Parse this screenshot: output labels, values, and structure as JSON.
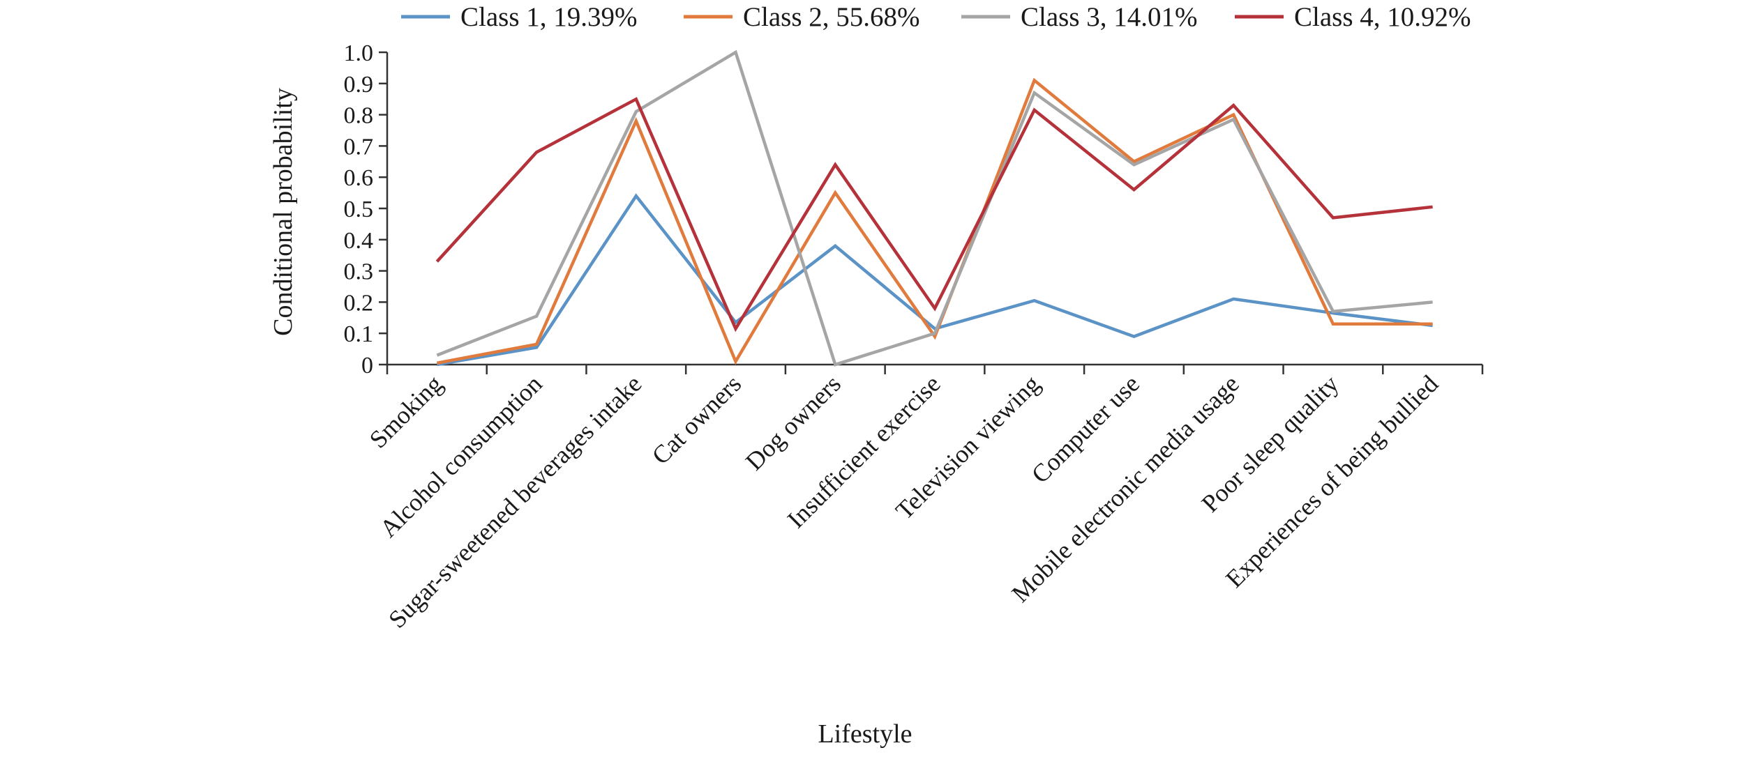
{
  "chart_data": {
    "type": "line",
    "title": "",
    "xlabel": "Lifestyle",
    "ylabel": "Conditional probability",
    "ylim": [
      0,
      1.0
    ],
    "yticks": [
      "0",
      "0.1",
      "0.2",
      "0.3",
      "0.4",
      "0.5",
      "0.6",
      "0.7",
      "0.8",
      "0.9",
      "1.0"
    ],
    "grid": false,
    "legend_position": "top",
    "categories": [
      "Smoking",
      "Alcohol consumption",
      "Sugar-sweetened beverages intake",
      "Cat owners",
      "Dog owners",
      "Insufficient exercise",
      "Television viewing",
      "Computer use",
      "Mobile electronic media usage",
      "Poor sleep quality",
      "Experiences of being bullied"
    ],
    "series": [
      {
        "name": "Class 1, 19.39%",
        "color": "#5b93c6",
        "values": [
          0.0,
          0.055,
          0.54,
          0.135,
          0.38,
          0.115,
          0.205,
          0.09,
          0.21,
          0.165,
          0.125
        ]
      },
      {
        "name": "Class 2, 55.68%",
        "color": "#e07b3d",
        "values": [
          0.005,
          0.065,
          0.78,
          0.01,
          0.55,
          0.09,
          0.91,
          0.65,
          0.8,
          0.13,
          0.13
        ]
      },
      {
        "name": "Class 3, 14.01%",
        "color": "#a5a5a5",
        "values": [
          0.03,
          0.155,
          0.81,
          1.0,
          0.0,
          0.1,
          0.87,
          0.64,
          0.785,
          0.17,
          0.2
        ]
      },
      {
        "name": "Class 4, 10.92%",
        "color": "#b5323a",
        "values": [
          0.33,
          0.68,
          0.85,
          0.115,
          0.64,
          0.18,
          0.815,
          0.56,
          0.83,
          0.47,
          0.505
        ]
      }
    ]
  }
}
